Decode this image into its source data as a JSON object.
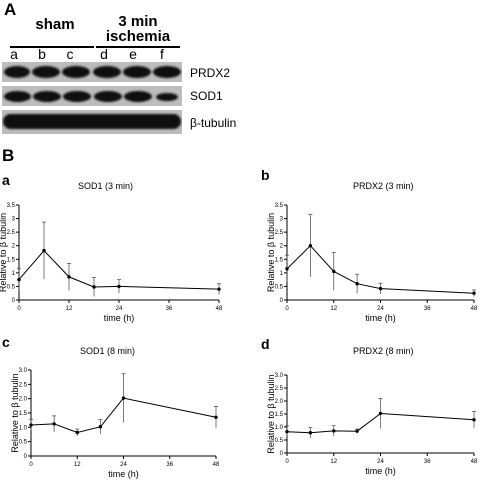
{
  "figure": {
    "panel_a_label": "A",
    "panel_b_label": "B",
    "groups": [
      {
        "label": "sham"
      },
      {
        "label_line1": "3 min",
        "label_line2": "ischemia"
      }
    ],
    "lanes": [
      "a",
      "b",
      "c",
      "d",
      "e",
      "f"
    ],
    "bands": [
      "PRDX2",
      "SOD1",
      "β-tubulin"
    ]
  },
  "chart_data": [
    {
      "panel": "a",
      "type": "line",
      "title": "SOD1 (3 min)",
      "xlabel": "time (h)",
      "ylabel": "Relative to β tubulin",
      "xlim": [
        0,
        48
      ],
      "ylim": [
        0,
        3.5
      ],
      "xticks": [
        0,
        12,
        24,
        36,
        48
      ],
      "yticks": [
        0,
        0.5,
        1,
        1.5,
        2,
        2.5,
        3,
        3.5
      ],
      "ytick_labels": [
        "0",
        "0.5",
        "1",
        "1.5",
        "2",
        "2.5",
        "3",
        "3.5"
      ],
      "x": [
        0,
        6,
        12,
        18,
        24,
        48
      ],
      "y": [
        0.75,
        1.82,
        0.85,
        0.48,
        0.5,
        0.4
      ],
      "err": [
        0.4,
        1.05,
        0.5,
        0.35,
        0.25,
        0.2
      ]
    },
    {
      "panel": "b",
      "type": "line",
      "title": "PRDX2 (3 min)",
      "xlabel": "time (h)",
      "ylabel": "Relative to β tubulin",
      "xlim": [
        0,
        48
      ],
      "ylim": [
        0,
        3.5
      ],
      "xticks": [
        0,
        12,
        24,
        36,
        48
      ],
      "yticks": [
        0,
        0.5,
        1,
        1.5,
        2,
        2.5,
        3,
        3.5
      ],
      "ytick_labels": [
        "0",
        "0.5",
        "1",
        "1.5",
        "2",
        "2.5",
        "3",
        "3.5"
      ],
      "x": [
        0,
        6,
        12,
        18,
        24,
        48
      ],
      "y": [
        1.15,
        2.0,
        1.05,
        0.6,
        0.42,
        0.25
      ],
      "err": [
        0.5,
        1.15,
        0.7,
        0.35,
        0.2,
        0.12
      ]
    },
    {
      "panel": "c",
      "type": "line",
      "title": "SOD1 (8 min)",
      "xlabel": "time (h)",
      "ylabel": "Relative to β tubulin",
      "xlim": [
        0,
        48
      ],
      "ylim": [
        0,
        3.0
      ],
      "xticks": [
        0,
        12,
        24,
        36,
        48
      ],
      "yticks": [
        0,
        0.5,
        1,
        1.5,
        2,
        2.5,
        3
      ],
      "ytick_labels": [
        "0",
        "0.5",
        "1.0",
        "1.5",
        "2.0",
        "2.5",
        "3.0"
      ],
      "x": [
        0,
        6,
        12,
        18,
        24,
        48
      ],
      "y": [
        1.08,
        1.12,
        0.82,
        1.02,
        2.02,
        1.35
      ],
      "err": [
        0.2,
        0.28,
        0.12,
        0.25,
        0.85,
        0.38
      ]
    },
    {
      "panel": "d",
      "type": "line",
      "title": "PRDX2 (8 min)",
      "xlabel": "time (h)",
      "ylabel": "Relative to β tubulin",
      "xlim": [
        0,
        48
      ],
      "ylim": [
        0,
        3.0
      ],
      "xticks": [
        0,
        12,
        24,
        36,
        48
      ],
      "yticks": [
        0,
        0.5,
        1,
        1.5,
        2,
        2.5,
        3
      ],
      "ytick_labels": [
        "0",
        "0.5",
        "1.0",
        "1.5",
        "2.0",
        "2.5",
        "3.0"
      ],
      "x": [
        0,
        6,
        12,
        18,
        24,
        48
      ],
      "y": [
        0.82,
        0.78,
        0.85,
        0.84,
        1.52,
        1.28
      ],
      "err": [
        0.22,
        0.2,
        0.2,
        0.08,
        0.58,
        0.32
      ]
    }
  ]
}
